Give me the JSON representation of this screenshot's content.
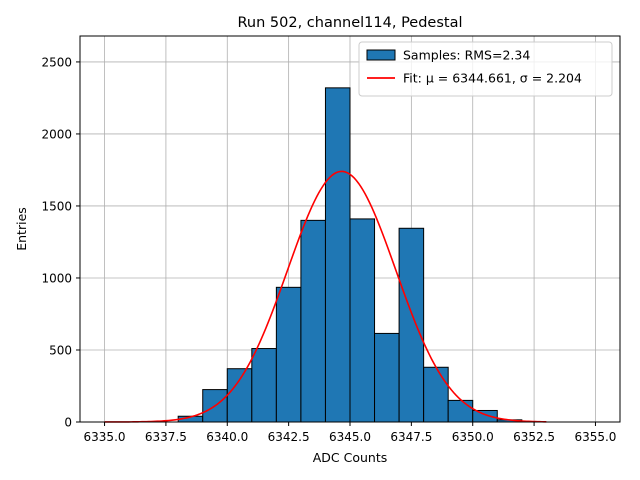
{
  "chart_data": {
    "type": "bar",
    "title": "Run 502, channel114, Pedestal",
    "xlabel": "ADC Counts",
    "ylabel": "Entries",
    "xlim": [
      6334.0,
      6356.0
    ],
    "ylim": [
      0,
      2680
    ],
    "xticks": [
      6335.0,
      6337.5,
      6340.0,
      6342.5,
      6345.0,
      6347.5,
      6350.0,
      6352.5,
      6355.0
    ],
    "xtick_labels": [
      "6335.0",
      "6337.5",
      "6340.0",
      "6342.5",
      "6345.0",
      "6347.5",
      "6350.0",
      "6352.5",
      "6355.0"
    ],
    "yticks": [
      0,
      500,
      1000,
      1500,
      2000,
      2500
    ],
    "ytick_labels": [
      "0",
      "500",
      "1000",
      "1500",
      "2000",
      "2500"
    ],
    "grid": true,
    "legend_position": "top-right",
    "bin_width": 1.0,
    "series": [
      {
        "name": "Samples: RMS=2.34",
        "type": "bar",
        "color": "#1f77b4",
        "edge_color": "#000000",
        "bins": [
          {
            "x0": 6338.0,
            "x1": 6339.0,
            "value": 40
          },
          {
            "x0": 6339.0,
            "x1": 6340.0,
            "value": 225
          },
          {
            "x0": 6340.0,
            "x1": 6341.0,
            "value": 370
          },
          {
            "x0": 6341.0,
            "x1": 6342.0,
            "value": 510
          },
          {
            "x0": 6342.0,
            "x1": 6343.0,
            "value": 935
          },
          {
            "x0": 6343.0,
            "x1": 6344.0,
            "value": 1400
          },
          {
            "x0": 6344.0,
            "x1": 6345.0,
            "value": 2320
          },
          {
            "x0": 6345.0,
            "x1": 6346.0,
            "value": 1410
          },
          {
            "x0": 6346.0,
            "x1": 6347.0,
            "value": 615
          },
          {
            "x0": 6347.0,
            "x1": 6348.0,
            "value": 1345
          },
          {
            "x0": 6348.0,
            "x1": 6349.0,
            "value": 380
          },
          {
            "x0": 6349.0,
            "x1": 6350.0,
            "value": 150
          },
          {
            "x0": 6350.0,
            "x1": 6351.0,
            "value": 80
          },
          {
            "x0": 6351.0,
            "x1": 6352.0,
            "value": 15
          }
        ]
      },
      {
        "name": "Fit: μ = 6344.661, σ = 2.204",
        "type": "line",
        "color": "#ff0000",
        "x_range": [
          6335.0,
          6353.0
        ],
        "mu": 6344.661,
        "sigma": 2.204,
        "amplitude": 1740
      }
    ]
  }
}
